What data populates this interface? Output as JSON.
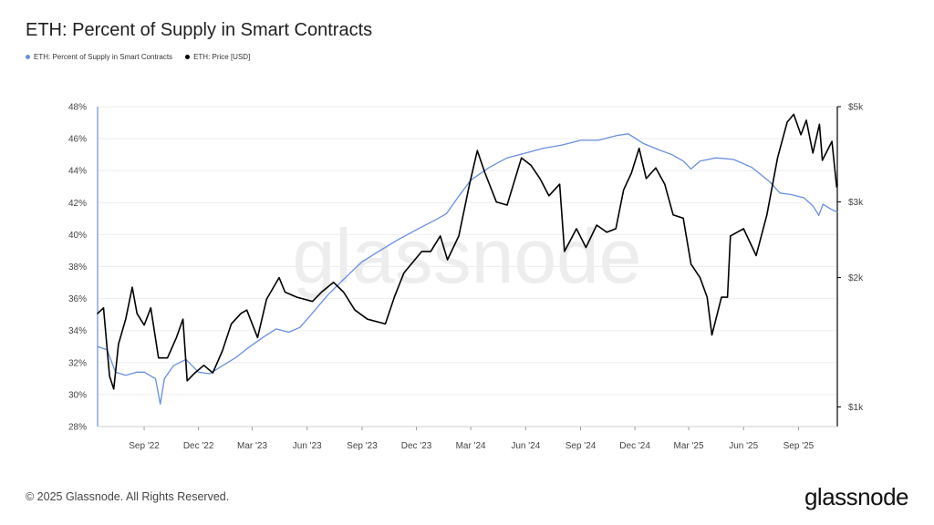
{
  "title": "ETH: Percent of Supply in Smart Contracts",
  "legend": [
    {
      "label": "ETH: Percent of Supply in Smart Contracts",
      "color": "#6a8ee0"
    },
    {
      "label": "ETH: Price [USD]",
      "color": "#000000"
    }
  ],
  "footer": "© 2025 Glassnode. All Rights Reserved.",
  "brand": "glassnode",
  "watermark": "glassnode",
  "chart_data": {
    "type": "line",
    "title": "ETH: Percent of Supply in Smart Contracts",
    "x_ticks": [
      "Sep '22",
      "Dec '22",
      "Mar '23",
      "Jun '23",
      "Sep '23",
      "Dec '23",
      "Mar '24",
      "Jun '24",
      "Sep '24",
      "Dec '24",
      "Mar '25",
      "Jun '25",
      "Sep '25"
    ],
    "x_range": [
      "2022-06-15",
      "2025-11-05"
    ],
    "y_left": {
      "ticks": [
        "28%",
        "30%",
        "32%",
        "34%",
        "36%",
        "38%",
        "40%",
        "42%",
        "44%",
        "46%",
        "48%"
      ],
      "range": [
        28,
        48
      ]
    },
    "y_right": {
      "ticks": [
        "$1k",
        "$2k",
        "$3k",
        "$5k"
      ],
      "range": [
        900,
        5000
      ],
      "scale": "log"
    },
    "grid": true,
    "legend_position": "top-left",
    "series": [
      {
        "name": "ETH: Percent of Supply in Smart Contracts",
        "axis": "left",
        "color": "#6a8ee0",
        "points": [
          [
            "2022-06-15",
            33.0
          ],
          [
            "2022-07-01",
            32.8
          ],
          [
            "2022-07-15",
            31.4
          ],
          [
            "2022-08-01",
            31.2
          ],
          [
            "2022-08-20",
            31.4
          ],
          [
            "2022-09-01",
            31.4
          ],
          [
            "2022-09-20",
            31.0
          ],
          [
            "2022-09-28",
            29.4
          ],
          [
            "2022-10-05",
            31.0
          ],
          [
            "2022-10-20",
            31.8
          ],
          [
            "2022-11-10",
            32.2
          ],
          [
            "2022-12-01",
            31.4
          ],
          [
            "2022-12-20",
            31.3
          ],
          [
            "2023-01-10",
            31.8
          ],
          [
            "2023-02-01",
            32.3
          ],
          [
            "2023-02-25",
            33.0
          ],
          [
            "2023-03-20",
            33.6
          ],
          [
            "2023-04-10",
            34.1
          ],
          [
            "2023-05-01",
            33.9
          ],
          [
            "2023-05-20",
            34.2
          ],
          [
            "2023-06-10",
            35.1
          ],
          [
            "2023-07-05",
            36.2
          ],
          [
            "2023-08-01",
            37.2
          ],
          [
            "2023-09-01",
            38.3
          ],
          [
            "2023-10-01",
            39.0
          ],
          [
            "2023-11-01",
            39.7
          ],
          [
            "2023-12-01",
            40.3
          ],
          [
            "2024-01-01",
            40.9
          ],
          [
            "2024-01-20",
            41.3
          ],
          [
            "2024-02-10",
            42.4
          ],
          [
            "2024-03-01",
            43.4
          ],
          [
            "2024-04-01",
            44.2
          ],
          [
            "2024-05-01",
            44.8
          ],
          [
            "2024-06-01",
            45.1
          ],
          [
            "2024-07-01",
            45.4
          ],
          [
            "2024-08-01",
            45.6
          ],
          [
            "2024-09-01",
            45.9
          ],
          [
            "2024-10-01",
            45.9
          ],
          [
            "2024-11-01",
            46.2
          ],
          [
            "2024-11-20",
            46.3
          ],
          [
            "2024-12-15",
            45.7
          ],
          [
            "2025-01-10",
            45.3
          ],
          [
            "2025-02-01",
            45.0
          ],
          [
            "2025-02-20",
            44.6
          ],
          [
            "2025-03-05",
            44.1
          ],
          [
            "2025-03-20",
            44.6
          ],
          [
            "2025-04-15",
            44.8
          ],
          [
            "2025-05-15",
            44.7
          ],
          [
            "2025-06-15",
            44.2
          ],
          [
            "2025-07-15",
            43.3
          ],
          [
            "2025-08-01",
            42.6
          ],
          [
            "2025-08-20",
            42.5
          ],
          [
            "2025-09-10",
            42.3
          ],
          [
            "2025-09-25",
            41.8
          ],
          [
            "2025-10-05",
            41.2
          ],
          [
            "2025-10-12",
            41.9
          ],
          [
            "2025-10-25",
            41.6
          ],
          [
            "2025-11-05",
            41.4
          ]
        ]
      },
      {
        "name": "ETH: Price [USD]",
        "axis": "right",
        "color": "#000000",
        "points": [
          [
            "2022-06-15",
            1650
          ],
          [
            "2022-06-25",
            1700
          ],
          [
            "2022-07-05",
            1180
          ],
          [
            "2022-07-12",
            1100
          ],
          [
            "2022-07-20",
            1400
          ],
          [
            "2022-08-01",
            1600
          ],
          [
            "2022-08-12",
            1900
          ],
          [
            "2022-08-20",
            1650
          ],
          [
            "2022-09-01",
            1550
          ],
          [
            "2022-09-12",
            1700
          ],
          [
            "2022-09-25",
            1300
          ],
          [
            "2022-10-10",
            1300
          ],
          [
            "2022-10-25",
            1450
          ],
          [
            "2022-11-05",
            1600
          ],
          [
            "2022-11-12",
            1150
          ],
          [
            "2022-11-25",
            1200
          ],
          [
            "2022-12-10",
            1250
          ],
          [
            "2022-12-25",
            1200
          ],
          [
            "2023-01-10",
            1350
          ],
          [
            "2023-01-25",
            1560
          ],
          [
            "2023-02-10",
            1650
          ],
          [
            "2023-02-20",
            1680
          ],
          [
            "2023-03-10",
            1450
          ],
          [
            "2023-03-25",
            1780
          ],
          [
            "2023-04-15",
            2000
          ],
          [
            "2023-04-25",
            1850
          ],
          [
            "2023-05-15",
            1800
          ],
          [
            "2023-06-10",
            1760
          ],
          [
            "2023-06-25",
            1850
          ],
          [
            "2023-07-15",
            1950
          ],
          [
            "2023-08-01",
            1850
          ],
          [
            "2023-08-20",
            1680
          ],
          [
            "2023-09-10",
            1600
          ],
          [
            "2023-10-10",
            1560
          ],
          [
            "2023-10-25",
            1800
          ],
          [
            "2023-11-10",
            2050
          ],
          [
            "2023-12-10",
            2300
          ],
          [
            "2023-12-25",
            2300
          ],
          [
            "2024-01-10",
            2500
          ],
          [
            "2024-01-22",
            2200
          ],
          [
            "2024-02-10",
            2500
          ],
          [
            "2024-02-28",
            3300
          ],
          [
            "2024-03-12",
            3950
          ],
          [
            "2024-03-25",
            3500
          ],
          [
            "2024-04-13",
            3000
          ],
          [
            "2024-05-01",
            2950
          ],
          [
            "2024-05-25",
            3800
          ],
          [
            "2024-06-10",
            3650
          ],
          [
            "2024-06-25",
            3400
          ],
          [
            "2024-07-10",
            3100
          ],
          [
            "2024-07-28",
            3300
          ],
          [
            "2024-08-05",
            2300
          ],
          [
            "2024-08-25",
            2600
          ],
          [
            "2024-09-10",
            2350
          ],
          [
            "2024-09-28",
            2650
          ],
          [
            "2024-10-15",
            2550
          ],
          [
            "2024-10-30",
            2600
          ],
          [
            "2024-11-12",
            3200
          ],
          [
            "2024-11-25",
            3500
          ],
          [
            "2024-12-08",
            4000
          ],
          [
            "2024-12-20",
            3400
          ],
          [
            "2025-01-05",
            3600
          ],
          [
            "2025-01-20",
            3300
          ],
          [
            "2025-02-03",
            2800
          ],
          [
            "2025-02-20",
            2750
          ],
          [
            "2025-03-05",
            2150
          ],
          [
            "2025-03-20",
            2000
          ],
          [
            "2025-04-01",
            1800
          ],
          [
            "2025-04-09",
            1470
          ],
          [
            "2025-04-25",
            1800
          ],
          [
            "2025-05-05",
            1800
          ],
          [
            "2025-05-10",
            2500
          ],
          [
            "2025-06-01",
            2600
          ],
          [
            "2025-06-22",
            2250
          ],
          [
            "2025-07-10",
            2800
          ],
          [
            "2025-07-28",
            3800
          ],
          [
            "2025-08-13",
            4600
          ],
          [
            "2025-08-24",
            4800
          ],
          [
            "2025-09-05",
            4300
          ],
          [
            "2025-09-14",
            4650
          ],
          [
            "2025-09-25",
            3900
          ],
          [
            "2025-10-06",
            4550
          ],
          [
            "2025-10-11",
            3750
          ],
          [
            "2025-10-27",
            4150
          ],
          [
            "2025-11-04",
            3250
          ],
          [
            "2025-11-05",
            3300
          ]
        ]
      }
    ]
  }
}
